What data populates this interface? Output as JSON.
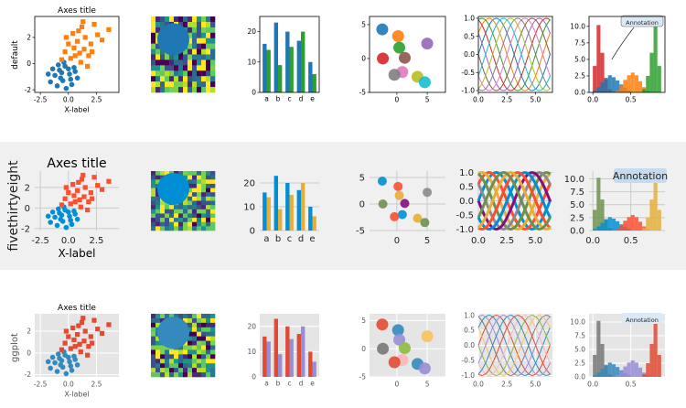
{
  "rows": [
    {
      "style": "default",
      "row_label": "default",
      "background": "#ffffff",
      "axes_facecolor": "#ffffff",
      "colors": [
        "#1f77b4",
        "#ff7f0e",
        "#2ca02c",
        "#d62728",
        "#9467bd",
        "#8c564b",
        "#e377c2",
        "#7f7f7f",
        "#bcbd22",
        "#17becf"
      ]
    },
    {
      "style": "fivethirtyeight",
      "row_label": "fivethirtyeight",
      "background": "#f0f0f0",
      "axes_facecolor": "#f0f0f0",
      "colors": [
        "#008fd5",
        "#fc4f30",
        "#e5ae38",
        "#6d904f",
        "#8b8b8b",
        "#810f7c"
      ]
    },
    {
      "style": "ggplot",
      "row_label": "ggplot",
      "background": "#ffffff",
      "axes_facecolor": "#e5e5e5",
      "colors": [
        "#E24A33",
        "#348ABD",
        "#988ED5",
        "#777777",
        "#FBC15E",
        "#8EBA42",
        "#FFB5B8"
      ]
    }
  ],
  "chart_data": [
    {
      "type": "scatter",
      "title": "Axes title",
      "xlabel": "X-label",
      "ylabel": "",
      "xlim": [
        -3,
        4.5
      ],
      "ylim": [
        -2.2,
        3.6
      ],
      "xticks": [
        "-2.5",
        "0.0",
        "2.5"
      ],
      "xtick_values": [
        -2.5,
        0,
        2.5
      ],
      "yticks": [
        "-2",
        "0",
        "2"
      ],
      "ytick_values": [
        -2,
        0,
        2
      ],
      "series": [
        {
          "marker": "circle",
          "points": [
            [
              -1.2,
              -0.9
            ],
            [
              -0.8,
              -0.5
            ],
            [
              -0.5,
              -1.3
            ],
            [
              -0.3,
              -0.2
            ],
            [
              0.1,
              -0.8
            ],
            [
              0.3,
              -1.6
            ],
            [
              -1.6,
              -1.4
            ],
            [
              -0.9,
              -0.1
            ],
            [
              0.5,
              -0.3
            ],
            [
              -0.2,
              -1.9
            ],
            [
              0.8,
              -1.1
            ],
            [
              -1.4,
              -0.4
            ],
            [
              -0.6,
              -0.7
            ],
            [
              0.2,
              -1.2
            ],
            [
              -1.0,
              -1.7
            ],
            [
              0.6,
              -0.6
            ],
            [
              -0.4,
              0.1
            ],
            [
              -1.8,
              -0.8
            ],
            [
              0.0,
              -0.4
            ],
            [
              -0.7,
              -1.1
            ]
          ]
        },
        {
          "marker": "square",
          "points": [
            [
              0.5,
              1.2
            ],
            [
              1.0,
              0.8
            ],
            [
              1.5,
              2.0
            ],
            [
              0.2,
              0.4
            ],
            [
              2.0,
              1.5
            ],
            [
              1.2,
              2.8
            ],
            [
              0.8,
              1.7
            ],
            [
              -0.3,
              0.9
            ],
            [
              1.8,
              0.6
            ],
            [
              2.6,
              2.2
            ],
            [
              0.4,
              2.3
            ],
            [
              1.4,
              1.1
            ],
            [
              0.0,
              1.5
            ],
            [
              2.3,
              3.0
            ],
            [
              1.1,
              0.1
            ],
            [
              -0.6,
              0.3
            ],
            [
              3.0,
              1.8
            ],
            [
              0.9,
              2.5
            ],
            [
              1.7,
              -0.2
            ],
            [
              0.6,
              0.6
            ],
            [
              -0.2,
              2.0
            ],
            [
              2.1,
              0.9
            ],
            [
              3.6,
              2.6
            ],
            [
              1.3,
              3.2
            ]
          ]
        }
      ]
    },
    {
      "type": "heatmap",
      "grid": {
        "rows": 14,
        "cols": 14
      },
      "overlay": {
        "shape": "circle",
        "center": [
          0.35,
          0.3
        ],
        "radius": 0.25
      }
    },
    {
      "type": "bar",
      "categories": [
        "a",
        "b",
        "c",
        "d",
        "e"
      ],
      "ylim": [
        0,
        25
      ],
      "yticks": [
        "0",
        "10",
        "20"
      ],
      "ytick_values": [
        0,
        10,
        20
      ],
      "series": [
        {
          "values": [
            16,
            23,
            20,
            17,
            10
          ]
        },
        {
          "values": [
            14,
            9,
            15,
            20,
            6
          ]
        }
      ]
    },
    {
      "type": "scatter",
      "xlim": [
        -4.5,
        8
      ],
      "ylim": [
        -5,
        6.2
      ],
      "xticks": [
        "0",
        "5"
      ],
      "xtick_values": [
        0,
        5
      ],
      "yticks": [
        "-5",
        "0",
        "5"
      ],
      "ytick_values": [
        -5,
        0,
        5
      ],
      "points": [
        [
          -2.4,
          4.3
        ],
        [
          0.2,
          3.3
        ],
        [
          0.4,
          1.6
        ],
        [
          -2.3,
          0.0
        ],
        [
          5.0,
          2.2
        ],
        [
          1.3,
          0.1
        ],
        [
          0.9,
          -2.0
        ],
        [
          -0.4,
          -2.4
        ],
        [
          3.4,
          -2.7
        ],
        [
          4.6,
          -3.5
        ]
      ]
    },
    {
      "type": "line",
      "xlim": [
        0,
        6.5
      ],
      "ylim": [
        -1.05,
        1.05
      ],
      "xticks": [
        "0.0",
        "2.5",
        "5.0"
      ],
      "xtick_values": [
        0,
        2.5,
        5
      ],
      "yticks": [
        "-1.0",
        "-0.5",
        "0.0",
        "0.5",
        "1.0"
      ],
      "ytick_values": [
        -1,
        -0.5,
        0,
        0.5,
        1
      ],
      "function": "sin",
      "phase_shifts": [
        0,
        0.63,
        1.26,
        1.88,
        2.51,
        3.14,
        3.77,
        4.4,
        5.03,
        5.65
      ]
    },
    {
      "type": "histogram",
      "xlim": [
        -0.05,
        0.95
      ],
      "ylim": [
        0,
        11.5
      ],
      "xticks": [
        "0.0",
        "0.5"
      ],
      "xtick_values": [
        0,
        0.5
      ],
      "yticks": [
        "0.0",
        "2.5",
        "5.0",
        "7.5",
        "10.0"
      ],
      "ytick_values": [
        0,
        2.5,
        5,
        7.5,
        10
      ],
      "bins": [
        0.0,
        0.05,
        0.1,
        0.15,
        0.2,
        0.25,
        0.3,
        0.35,
        0.4,
        0.45,
        0.5,
        0.55,
        0.6,
        0.65,
        0.7,
        0.75,
        0.8,
        0.85,
        0.9
      ],
      "series": [
        {
          "counts": [
            4,
            10.2,
            6,
            2,
            0.5,
            0,
            0,
            0,
            0,
            0,
            0,
            0,
            0,
            0,
            0,
            0,
            0,
            0
          ]
        },
        {
          "counts": [
            0.3,
            0.8,
            1.5,
            2.2,
            2.6,
            2.3,
            1.8,
            1.2,
            0.7,
            0.3,
            0,
            0,
            0,
            0,
            0,
            0,
            0,
            0
          ]
        },
        {
          "counts": [
            0,
            0,
            0,
            0,
            0,
            0,
            0.3,
            1.0,
            1.9,
            2.6,
            3.0,
            2.6,
            1.7,
            0.8,
            0.2,
            0,
            0,
            0
          ]
        },
        {
          "counts": [
            0,
            0,
            0,
            0,
            0,
            0,
            0,
            0,
            0,
            0,
            0,
            0,
            0,
            0.5,
            2.5,
            6.0,
            10.0,
            4.0
          ]
        }
      ],
      "annotation": {
        "text": "Annotation",
        "xy": [
          0.25,
          5.0
        ]
      }
    }
  ]
}
